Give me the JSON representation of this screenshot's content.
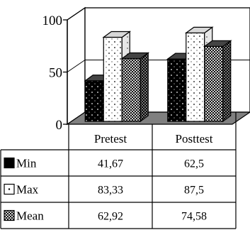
{
  "chart_data": {
    "type": "bar",
    "style": "3d-clustered-column-with-data-table",
    "categories": [
      "Pretest",
      "Posttest"
    ],
    "series": [
      {
        "name": "Min",
        "values": [
          41.67,
          62.5
        ],
        "display": [
          "41,67",
          "62,5"
        ],
        "pattern": "black-dotted"
      },
      {
        "name": "Max",
        "values": [
          83.33,
          87.5
        ],
        "display": [
          "83,33",
          "87,5"
        ],
        "pattern": "white-dotted"
      },
      {
        "name": "Mean",
        "values": [
          62.92,
          74.58
        ],
        "display": [
          "62,92",
          "74,58"
        ],
        "pattern": "dark-checker"
      }
    ],
    "y_ticks": [
      "0",
      "50",
      "100"
    ],
    "ylim": [
      0,
      100
    ],
    "grid": true,
    "legend": "data-table-left",
    "colors": {
      "background": "#ffffff",
      "floor": "#808080",
      "ink": "#000000"
    }
  }
}
